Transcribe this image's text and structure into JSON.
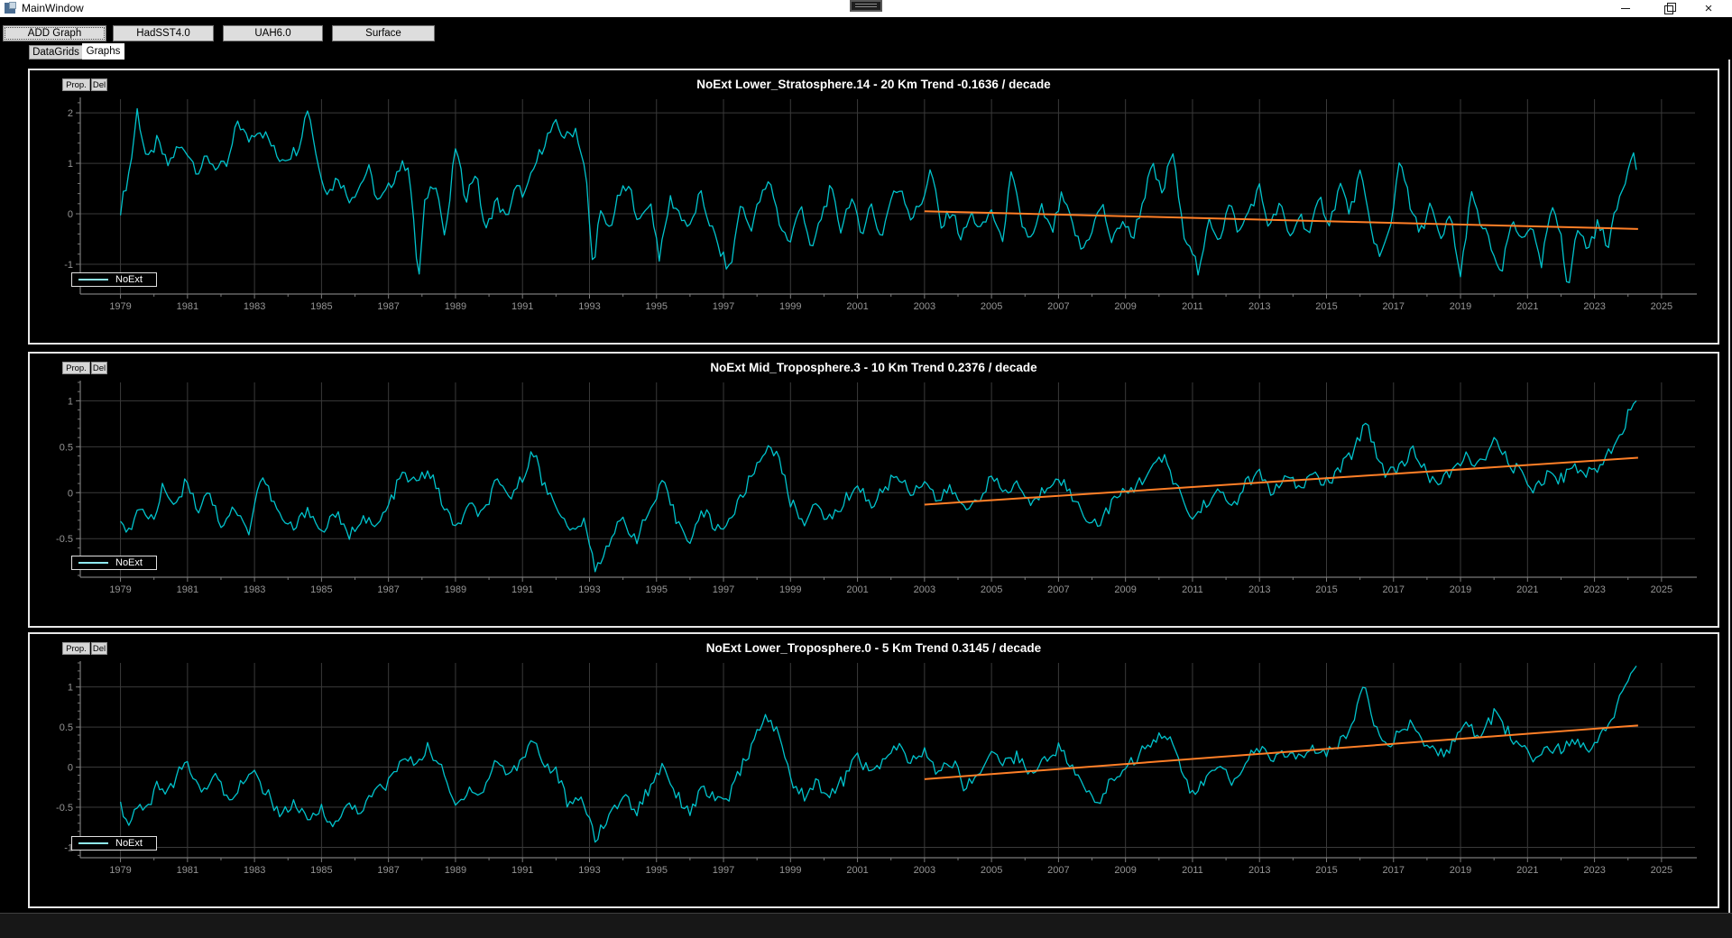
{
  "window": {
    "title": "MainWindow",
    "close_glyph": "×"
  },
  "toolbar": {
    "buttons": [
      {
        "label": "ADD Graph"
      },
      {
        "label": "HadSST4.0"
      },
      {
        "label": "UAH6.0"
      },
      {
        "label": "Surface"
      }
    ]
  },
  "tabs": {
    "items": [
      {
        "label": "DataGrids",
        "selected": false
      },
      {
        "label": "Graphs",
        "selected": true
      }
    ]
  },
  "colors": {
    "series": "#00c3cc",
    "legend_sample": "#8feaf1",
    "trend": "#ff7f27",
    "grid": "#3a3a3a",
    "axis": "#7a7a7a",
    "tick_text": "#959595",
    "panel_border": "#e8e8e8",
    "title_text": "#ffffff"
  },
  "x_range": [
    1977.8,
    2026.0
  ],
  "x_axis_ticks": [
    1979,
    1981,
    1983,
    1985,
    1987,
    1989,
    1991,
    1993,
    1995,
    1997,
    1999,
    2001,
    2003,
    2005,
    2007,
    2009,
    2011,
    2013,
    2015,
    2017,
    2019,
    2021,
    2023,
    2025
  ],
  "charts": [
    {
      "title": "NoExt Lower_Stratosphere.14 - 20 Km Trend -0.1636 / decade",
      "prop_label": "Prop.",
      "del_label": "Del",
      "legend": "NoExt",
      "type": "line",
      "y_ticks": [
        2,
        1,
        0,
        -1
      ],
      "y_minor_step": 0.2,
      "y_range": [
        -1.59,
        2.27
      ],
      "trend": {
        "start_year": 2003,
        "start_value": 0.05,
        "end_year": 2024.3,
        "end_value": -0.3,
        "rate_label": "-0.1636 / decade"
      },
      "noise_amplitude": 0.13,
      "points_flat": [
        1979.0,
        0.1,
        1979.3,
        0.95,
        1979.5,
        2.05,
        1979.8,
        1.0,
        1980.1,
        1.45,
        1980.4,
        0.95,
        1980.7,
        1.3,
        1981.0,
        1.25,
        1981.3,
        0.85,
        1981.6,
        1.1,
        1981.9,
        0.9,
        1982.2,
        0.95,
        1982.5,
        1.85,
        1982.8,
        1.45,
        1983.1,
        1.7,
        1983.4,
        1.5,
        1983.7,
        1.1,
        1984.0,
        1.15,
        1984.3,
        1.3,
        1984.6,
        2.15,
        1984.9,
        0.95,
        1985.2,
        0.4,
        1985.5,
        0.75,
        1985.8,
        0.3,
        1986.1,
        0.5,
        1986.4,
        0.9,
        1986.7,
        0.2,
        1987.0,
        0.5,
        1987.3,
        0.9,
        1987.6,
        1.0,
        1987.75,
        -0.2,
        1987.9,
        -1.35,
        1988.1,
        0.3,
        1988.4,
        0.7,
        1988.7,
        -0.55,
        1989.0,
        1.35,
        1989.3,
        0.3,
        1989.6,
        0.85,
        1989.9,
        -0.4,
        1990.2,
        0.3,
        1990.5,
        -0.1,
        1990.8,
        0.5,
        1991.1,
        0.4,
        1991.4,
        1.0,
        1991.7,
        1.5,
        1992.0,
        1.75,
        1992.3,
        1.5,
        1992.6,
        1.7,
        1992.9,
        0.7,
        1993.1,
        -1.1,
        1993.3,
        0.0,
        1993.6,
        -0.3,
        1993.9,
        0.4,
        1994.2,
        0.5,
        1994.5,
        -0.2,
        1994.8,
        0.3,
        1995.1,
        -0.9,
        1995.4,
        0.3,
        1995.7,
        0.0,
        1996.0,
        -0.3,
        1996.3,
        0.4,
        1996.6,
        -0.2,
        1996.9,
        -0.75,
        1997.2,
        -1.15,
        1997.5,
        0.2,
        1997.8,
        -0.3,
        1998.1,
        0.3,
        1998.4,
        0.65,
        1998.7,
        -0.25,
        1999.0,
        -0.6,
        1999.3,
        0.3,
        1999.6,
        -0.8,
        1999.9,
        -0.1,
        2000.2,
        0.5,
        2000.5,
        -0.3,
        2000.8,
        0.35,
        2001.1,
        -0.4,
        2001.4,
        0.2,
        2001.7,
        -0.5,
        2002.0,
        0.3,
        2002.3,
        0.55,
        2002.6,
        -0.1,
        2002.9,
        0.2,
        2003.2,
        0.9,
        2003.5,
        -0.3,
        2003.8,
        0.1,
        2004.1,
        -0.5,
        2004.4,
        0.0,
        2004.7,
        -0.35,
        2005.0,
        0.1,
        2005.3,
        -0.6,
        2005.6,
        0.8,
        2005.9,
        -0.2,
        2006.2,
        -0.55,
        2006.5,
        0.1,
        2006.8,
        -0.4,
        2007.1,
        0.35,
        2007.4,
        -0.2,
        2007.7,
        -0.75,
        2008.0,
        -0.3,
        2008.3,
        0.2,
        2008.6,
        -0.6,
        2008.9,
        -0.1,
        2009.2,
        -0.5,
        2009.5,
        0.2,
        2009.8,
        0.95,
        2010.1,
        0.35,
        2010.4,
        1.3,
        2010.7,
        -0.3,
        2011.0,
        -0.7,
        2011.2,
        -1.25,
        2011.5,
        -0.1,
        2011.8,
        -0.5,
        2012.1,
        0.2,
        2012.4,
        -0.4,
        2012.7,
        0.1,
        2013.0,
        0.5,
        2013.3,
        -0.3,
        2013.6,
        0.2,
        2013.9,
        -0.5,
        2014.2,
        0.0,
        2014.5,
        -0.4,
        2014.8,
        0.3,
        2015.1,
        -0.2,
        2015.4,
        0.6,
        2015.7,
        0.0,
        2016.0,
        0.8,
        2016.3,
        -0.2,
        2016.6,
        -0.9,
        2016.9,
        -0.3,
        2017.2,
        1.2,
        2017.5,
        0.1,
        2017.8,
        -0.4,
        2018.1,
        0.2,
        2018.4,
        -0.6,
        2018.7,
        0.0,
        2019.0,
        -1.3,
        2019.3,
        0.4,
        2019.6,
        -0.2,
        2019.9,
        -0.6,
        2020.2,
        -1.3,
        2020.5,
        -0.2,
        2020.8,
        -0.5,
        2021.1,
        -0.2,
        2021.4,
        -1.1,
        2021.7,
        0.1,
        2022.0,
        -0.4,
        2022.2,
        -1.45,
        2022.5,
        -0.3,
        2022.8,
        -0.7,
        2023.1,
        -0.2,
        2023.4,
        -0.6,
        2023.7,
        0.2,
        2024.0,
        0.9,
        2024.2,
        1.4,
        2024.3,
        0.6
      ]
    },
    {
      "title": "NoExt Mid_Troposphere.3 - 10 Km Trend 0.2376 / decade",
      "prop_label": "Prop.",
      "del_label": "Del",
      "legend": "NoExt",
      "type": "line",
      "y_ticks": [
        1,
        0.5,
        0,
        -0.5
      ],
      "y_minor_step": 0.1,
      "y_range": [
        -0.92,
        1.2
      ],
      "trend": {
        "start_year": 2003,
        "start_value": -0.13,
        "end_year": 2024.3,
        "end_value": 0.38,
        "rate_label": "0.2376 / decade"
      },
      "noise_amplitude": 0.07,
      "points_flat": [
        1979.0,
        -0.25,
        1979.3,
        -0.45,
        1979.6,
        -0.15,
        1980.0,
        -0.3,
        1980.3,
        0.1,
        1980.6,
        -0.15,
        1981.0,
        0.15,
        1981.3,
        -0.2,
        1981.6,
        0.05,
        1982.0,
        -0.35,
        1982.4,
        -0.15,
        1982.8,
        -0.45,
        1983.2,
        0.2,
        1983.5,
        -0.05,
        1983.8,
        -0.3,
        1984.2,
        -0.4,
        1984.6,
        -0.15,
        1985.0,
        -0.45,
        1985.4,
        -0.2,
        1985.8,
        -0.5,
        1986.2,
        -0.25,
        1986.6,
        -0.4,
        1987.0,
        -0.15,
        1987.4,
        0.2,
        1987.8,
        0.1,
        1988.2,
        0.25,
        1988.6,
        -0.1,
        1989.0,
        -0.4,
        1989.4,
        -0.15,
        1989.8,
        -0.25,
        1990.2,
        0.1,
        1990.6,
        -0.05,
        1991.0,
        0.15,
        1991.3,
        0.5,
        1991.6,
        0.1,
        1992.0,
        -0.1,
        1992.4,
        -0.45,
        1992.8,
        -0.3,
        1993.2,
        -0.85,
        1993.6,
        -0.5,
        1994.0,
        -0.3,
        1994.4,
        -0.5,
        1994.8,
        -0.2,
        1995.2,
        0.1,
        1995.6,
        -0.3,
        1996.0,
        -0.5,
        1996.4,
        -0.2,
        1996.8,
        -0.4,
        1997.2,
        -0.3,
        1997.6,
        0.0,
        1998.0,
        0.3,
        1998.4,
        0.55,
        1998.7,
        0.3,
        1999.0,
        -0.1,
        1999.4,
        -0.3,
        1999.8,
        -0.15,
        2000.2,
        -0.3,
        2000.6,
        -0.1,
        2001.0,
        0.1,
        2001.4,
        -0.15,
        2001.8,
        0.05,
        2002.2,
        0.2,
        2002.6,
        0.0,
        2003.0,
        0.15,
        2003.4,
        -0.1,
        2003.8,
        0.05,
        2004.2,
        -0.2,
        2004.6,
        -0.05,
        2005.0,
        0.15,
        2005.4,
        0.0,
        2005.8,
        0.1,
        2006.2,
        -0.15,
        2006.6,
        0.05,
        2007.0,
        0.2,
        2007.4,
        -0.05,
        2007.8,
        -0.25,
        2008.2,
        -0.35,
        2008.6,
        -0.1,
        2009.0,
        0.0,
        2009.4,
        0.1,
        2009.8,
        0.3,
        2010.2,
        0.35,
        2010.6,
        0.0,
        2011.0,
        -0.3,
        2011.4,
        -0.1,
        2011.8,
        0.0,
        2012.2,
        -0.15,
        2012.6,
        0.1,
        2013.0,
        0.2,
        2013.4,
        0.0,
        2013.8,
        0.15,
        2014.2,
        0.05,
        2014.6,
        0.2,
        2015.0,
        0.1,
        2015.4,
        0.25,
        2015.8,
        0.45,
        2016.2,
        0.8,
        2016.5,
        0.4,
        2016.8,
        0.2,
        2017.2,
        0.3,
        2017.6,
        0.45,
        2018.0,
        0.2,
        2018.4,
        0.1,
        2018.8,
        0.25,
        2019.2,
        0.4,
        2019.6,
        0.3,
        2020.0,
        0.55,
        2020.4,
        0.35,
        2020.8,
        0.2,
        2021.2,
        0.05,
        2021.6,
        0.2,
        2022.0,
        0.15,
        2022.4,
        0.3,
        2022.8,
        0.2,
        2023.2,
        0.3,
        2023.6,
        0.55,
        2023.9,
        0.75,
        2024.1,
        0.95,
        2024.3,
        1.1
      ]
    },
    {
      "title": "NoExt Lower_Troposphere.0 - 5 Km Trend 0.3145 / decade",
      "prop_label": "Prop.",
      "del_label": "Del",
      "legend": "NoExt",
      "type": "line",
      "y_ticks": [
        1,
        0.5,
        0,
        -0.5,
        -1
      ],
      "y_minor_step": 0.1,
      "y_range": [
        -1.13,
        1.3
      ],
      "trend": {
        "start_year": 2003,
        "start_value": -0.15,
        "end_year": 2024.3,
        "end_value": 0.52,
        "rate_label": "0.3145 / decade"
      },
      "noise_amplitude": 0.08,
      "points_flat": [
        1979.0,
        -0.4,
        1979.2,
        -0.75,
        1979.5,
        -0.5,
        1979.8,
        -0.55,
        1980.1,
        -0.2,
        1980.4,
        -0.35,
        1980.7,
        -0.1,
        1981.0,
        0.05,
        1981.4,
        -0.3,
        1981.8,
        -0.1,
        1982.2,
        -0.4,
        1982.6,
        -0.2,
        1983.0,
        -0.1,
        1983.4,
        -0.35,
        1983.8,
        -0.6,
        1984.2,
        -0.45,
        1984.6,
        -0.7,
        1985.0,
        -0.5,
        1985.4,
        -0.75,
        1985.8,
        -0.45,
        1986.2,
        -0.55,
        1986.6,
        -0.3,
        1987.0,
        -0.2,
        1987.4,
        0.1,
        1987.8,
        0.05,
        1988.2,
        0.25,
        1988.6,
        -0.05,
        1989.0,
        -0.5,
        1989.4,
        -0.25,
        1989.8,
        -0.35,
        1990.2,
        0.1,
        1990.6,
        -0.1,
        1991.0,
        0.1,
        1991.3,
        0.4,
        1991.6,
        0.05,
        1992.0,
        -0.05,
        1992.4,
        -0.5,
        1992.8,
        -0.4,
        1993.2,
        -0.9,
        1993.6,
        -0.6,
        1994.0,
        -0.35,
        1994.4,
        -0.55,
        1994.8,
        -0.25,
        1995.2,
        0.05,
        1995.6,
        -0.35,
        1996.0,
        -0.55,
        1996.4,
        -0.25,
        1996.8,
        -0.45,
        1997.2,
        -0.35,
        1997.6,
        0.05,
        1998.0,
        0.4,
        1998.3,
        0.65,
        1998.7,
        0.35,
        1999.0,
        -0.15,
        1999.4,
        -0.35,
        1999.8,
        -0.2,
        2000.2,
        -0.35,
        2000.6,
        -0.15,
        2001.0,
        0.15,
        2001.4,
        -0.1,
        2001.8,
        0.1,
        2002.2,
        0.25,
        2002.6,
        0.05,
        2003.0,
        0.2,
        2003.4,
        -0.1,
        2003.8,
        0.1,
        2004.2,
        -0.25,
        2004.6,
        -0.1,
        2005.0,
        0.2,
        2005.4,
        0.05,
        2005.8,
        0.15,
        2006.2,
        -0.1,
        2006.6,
        0.1,
        2007.0,
        0.25,
        2007.4,
        0.0,
        2007.8,
        -0.3,
        2008.2,
        -0.45,
        2008.6,
        -0.15,
        2009.0,
        0.0,
        2009.4,
        0.15,
        2009.8,
        0.35,
        2010.2,
        0.45,
        2010.6,
        0.05,
        2011.0,
        -0.35,
        2011.4,
        -0.15,
        2011.8,
        0.0,
        2012.2,
        -0.2,
        2012.6,
        0.1,
        2013.0,
        0.25,
        2013.4,
        0.05,
        2013.8,
        0.2,
        2014.2,
        0.1,
        2014.6,
        0.25,
        2015.0,
        0.15,
        2015.4,
        0.3,
        2015.8,
        0.55,
        2016.1,
        1.1,
        2016.4,
        0.6,
        2016.8,
        0.3,
        2017.2,
        0.4,
        2017.6,
        0.55,
        2018.0,
        0.25,
        2018.4,
        0.15,
        2018.8,
        0.3,
        2019.2,
        0.5,
        2019.6,
        0.4,
        2020.0,
        0.65,
        2020.4,
        0.45,
        2020.8,
        0.25,
        2021.2,
        0.1,
        2021.6,
        0.25,
        2022.0,
        0.2,
        2022.4,
        0.35,
        2022.8,
        0.25,
        2023.2,
        0.4,
        2023.6,
        0.7,
        2023.9,
        0.95,
        2024.1,
        1.2,
        2024.3,
        1.25
      ]
    }
  ]
}
